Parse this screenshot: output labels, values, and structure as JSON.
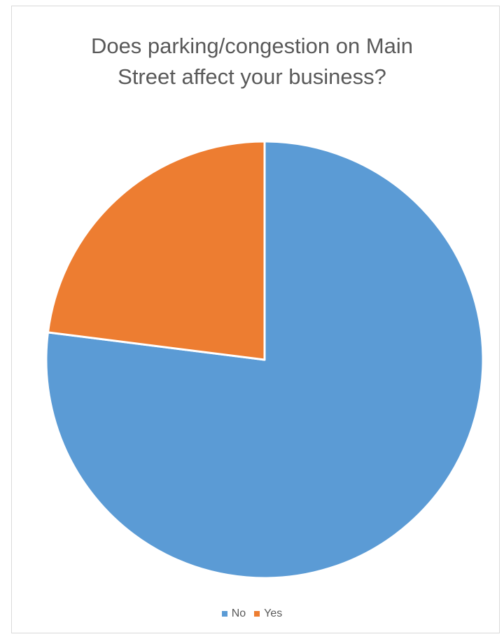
{
  "chart_data": {
    "type": "pie",
    "title_lines": [
      "Does parking/congestion on Main",
      "Street affect your business?"
    ],
    "categories": [
      "No",
      "Yes"
    ],
    "values": [
      77,
      23
    ],
    "colors": [
      "#5B9BD5",
      "#ED7D31"
    ],
    "start_angle_deg": 0,
    "direction": "clockwise",
    "legend_position": "bottom"
  }
}
